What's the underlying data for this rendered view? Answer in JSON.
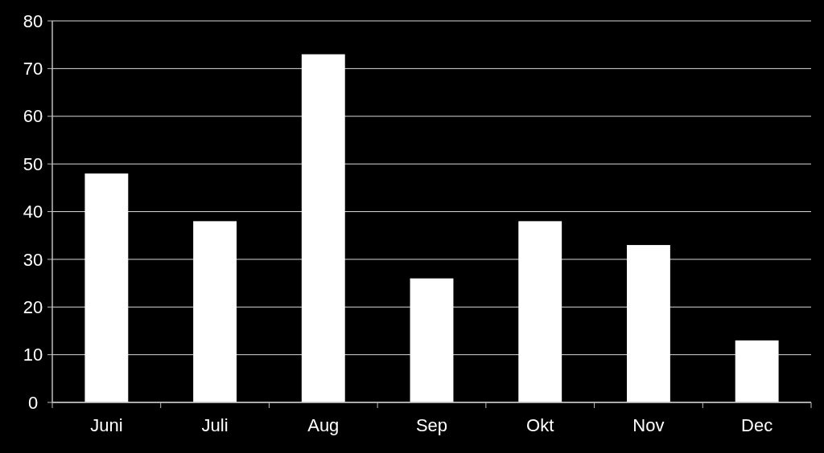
{
  "chart_data": {
    "type": "bar",
    "categories": [
      "Juni",
      "Juli",
      "Aug",
      "Sep",
      "Okt",
      "Nov",
      "Dec"
    ],
    "values": [
      48,
      38,
      73,
      26,
      38,
      33,
      13
    ],
    "color": "#ffffff",
    "ylim": [
      0,
      80
    ],
    "yticks": [
      0,
      10,
      20,
      30,
      40,
      50,
      60,
      70,
      80
    ],
    "grid": "y"
  }
}
